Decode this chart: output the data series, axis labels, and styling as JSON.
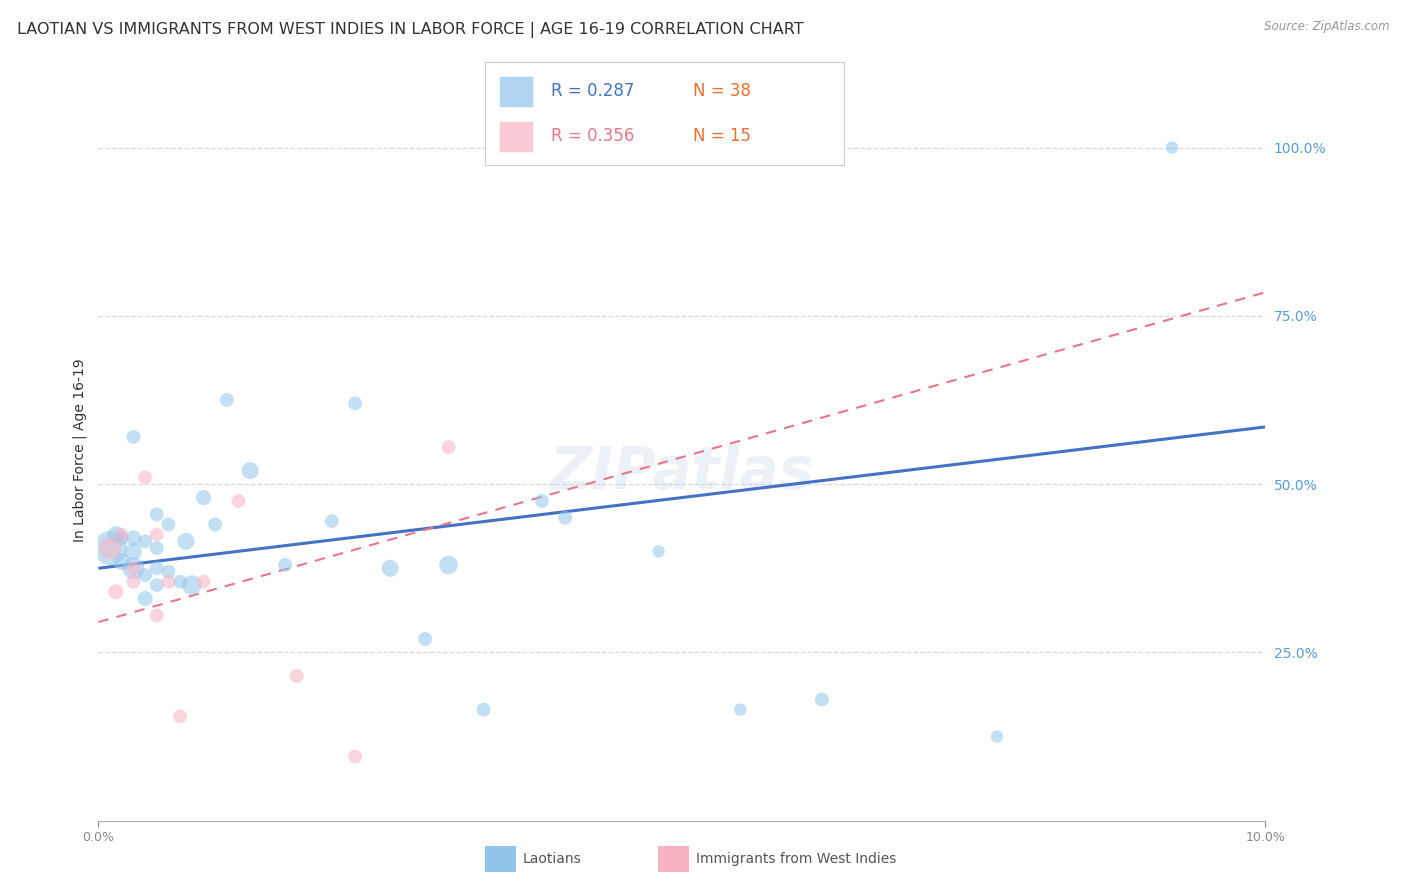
{
  "title": "LAOTIAN VS IMMIGRANTS FROM WEST INDIES IN LABOR FORCE | AGE 16-19 CORRELATION CHART",
  "source": "Source: ZipAtlas.com",
  "ylabel": "In Labor Force | Age 16-19",
  "xlim": [
    0.0,
    0.1
  ],
  "ylim": [
    0.0,
    1.1
  ],
  "legend_r1": "0.287",
  "legend_n1": "38",
  "legend_r2": "0.356",
  "legend_n2": "15",
  "series1_color": "#92C5EC",
  "series2_color": "#F7B3C2",
  "trendline1_color": "#4472C4",
  "trendline2_color": "#E8768A",
  "watermark": "ZIPatlas",
  "laotians_x": [
    0.001,
    0.0015,
    0.002,
    0.002,
    0.003,
    0.003,
    0.003,
    0.003,
    0.004,
    0.004,
    0.004,
    0.005,
    0.005,
    0.005,
    0.005,
    0.006,
    0.006,
    0.007,
    0.0075,
    0.008,
    0.009,
    0.01,
    0.011,
    0.013,
    0.016,
    0.02,
    0.022,
    0.025,
    0.028,
    0.03,
    0.033,
    0.038,
    0.04,
    0.048,
    0.055,
    0.062,
    0.077,
    0.092
  ],
  "laotians_y": [
    0.405,
    0.425,
    0.42,
    0.385,
    0.375,
    0.4,
    0.42,
    0.57,
    0.33,
    0.365,
    0.415,
    0.35,
    0.375,
    0.405,
    0.455,
    0.37,
    0.44,
    0.355,
    0.415,
    0.35,
    0.48,
    0.44,
    0.625,
    0.52,
    0.38,
    0.445,
    0.62,
    0.375,
    0.27,
    0.38,
    0.165,
    0.475,
    0.45,
    0.4,
    0.165,
    0.18,
    0.125,
    1.0
  ],
  "laotians_size": [
    600,
    150,
    100,
    150,
    250,
    150,
    120,
    100,
    120,
    100,
    100,
    100,
    100,
    100,
    100,
    100,
    100,
    100,
    150,
    200,
    120,
    100,
    100,
    150,
    100,
    100,
    100,
    150,
    100,
    180,
    100,
    100,
    100,
    80,
    80,
    100,
    80,
    80
  ],
  "westindies_x": [
    0.001,
    0.0015,
    0.002,
    0.003,
    0.003,
    0.004,
    0.005,
    0.005,
    0.006,
    0.007,
    0.009,
    0.012,
    0.017,
    0.022,
    0.03
  ],
  "westindies_y": [
    0.405,
    0.34,
    0.425,
    0.355,
    0.375,
    0.51,
    0.305,
    0.425,
    0.355,
    0.155,
    0.355,
    0.475,
    0.215,
    0.095,
    0.555
  ],
  "westindies_size": [
    250,
    120,
    100,
    100,
    100,
    100,
    100,
    100,
    100,
    100,
    100,
    100,
    100,
    100,
    100
  ],
  "trendline1_x": [
    0.0,
    0.1
  ],
  "trendline1_y": [
    0.375,
    0.585
  ],
  "trendline2_x": [
    0.0,
    0.1
  ],
  "trendline2_y": [
    0.295,
    0.785
  ],
  "grid_color": "#D9D9D9",
  "grid_yticks": [
    0.25,
    0.5,
    0.75,
    1.0
  ],
  "background_color": "#FFFFFF",
  "right_axis_color": "#5B9BD5",
  "title_fontsize": 11.5,
  "axis_label_fontsize": 10,
  "legend_fontsize": 12,
  "n_color": "#E87030",
  "r1_color": "#4472C4",
  "r2_color": "#E8768A"
}
